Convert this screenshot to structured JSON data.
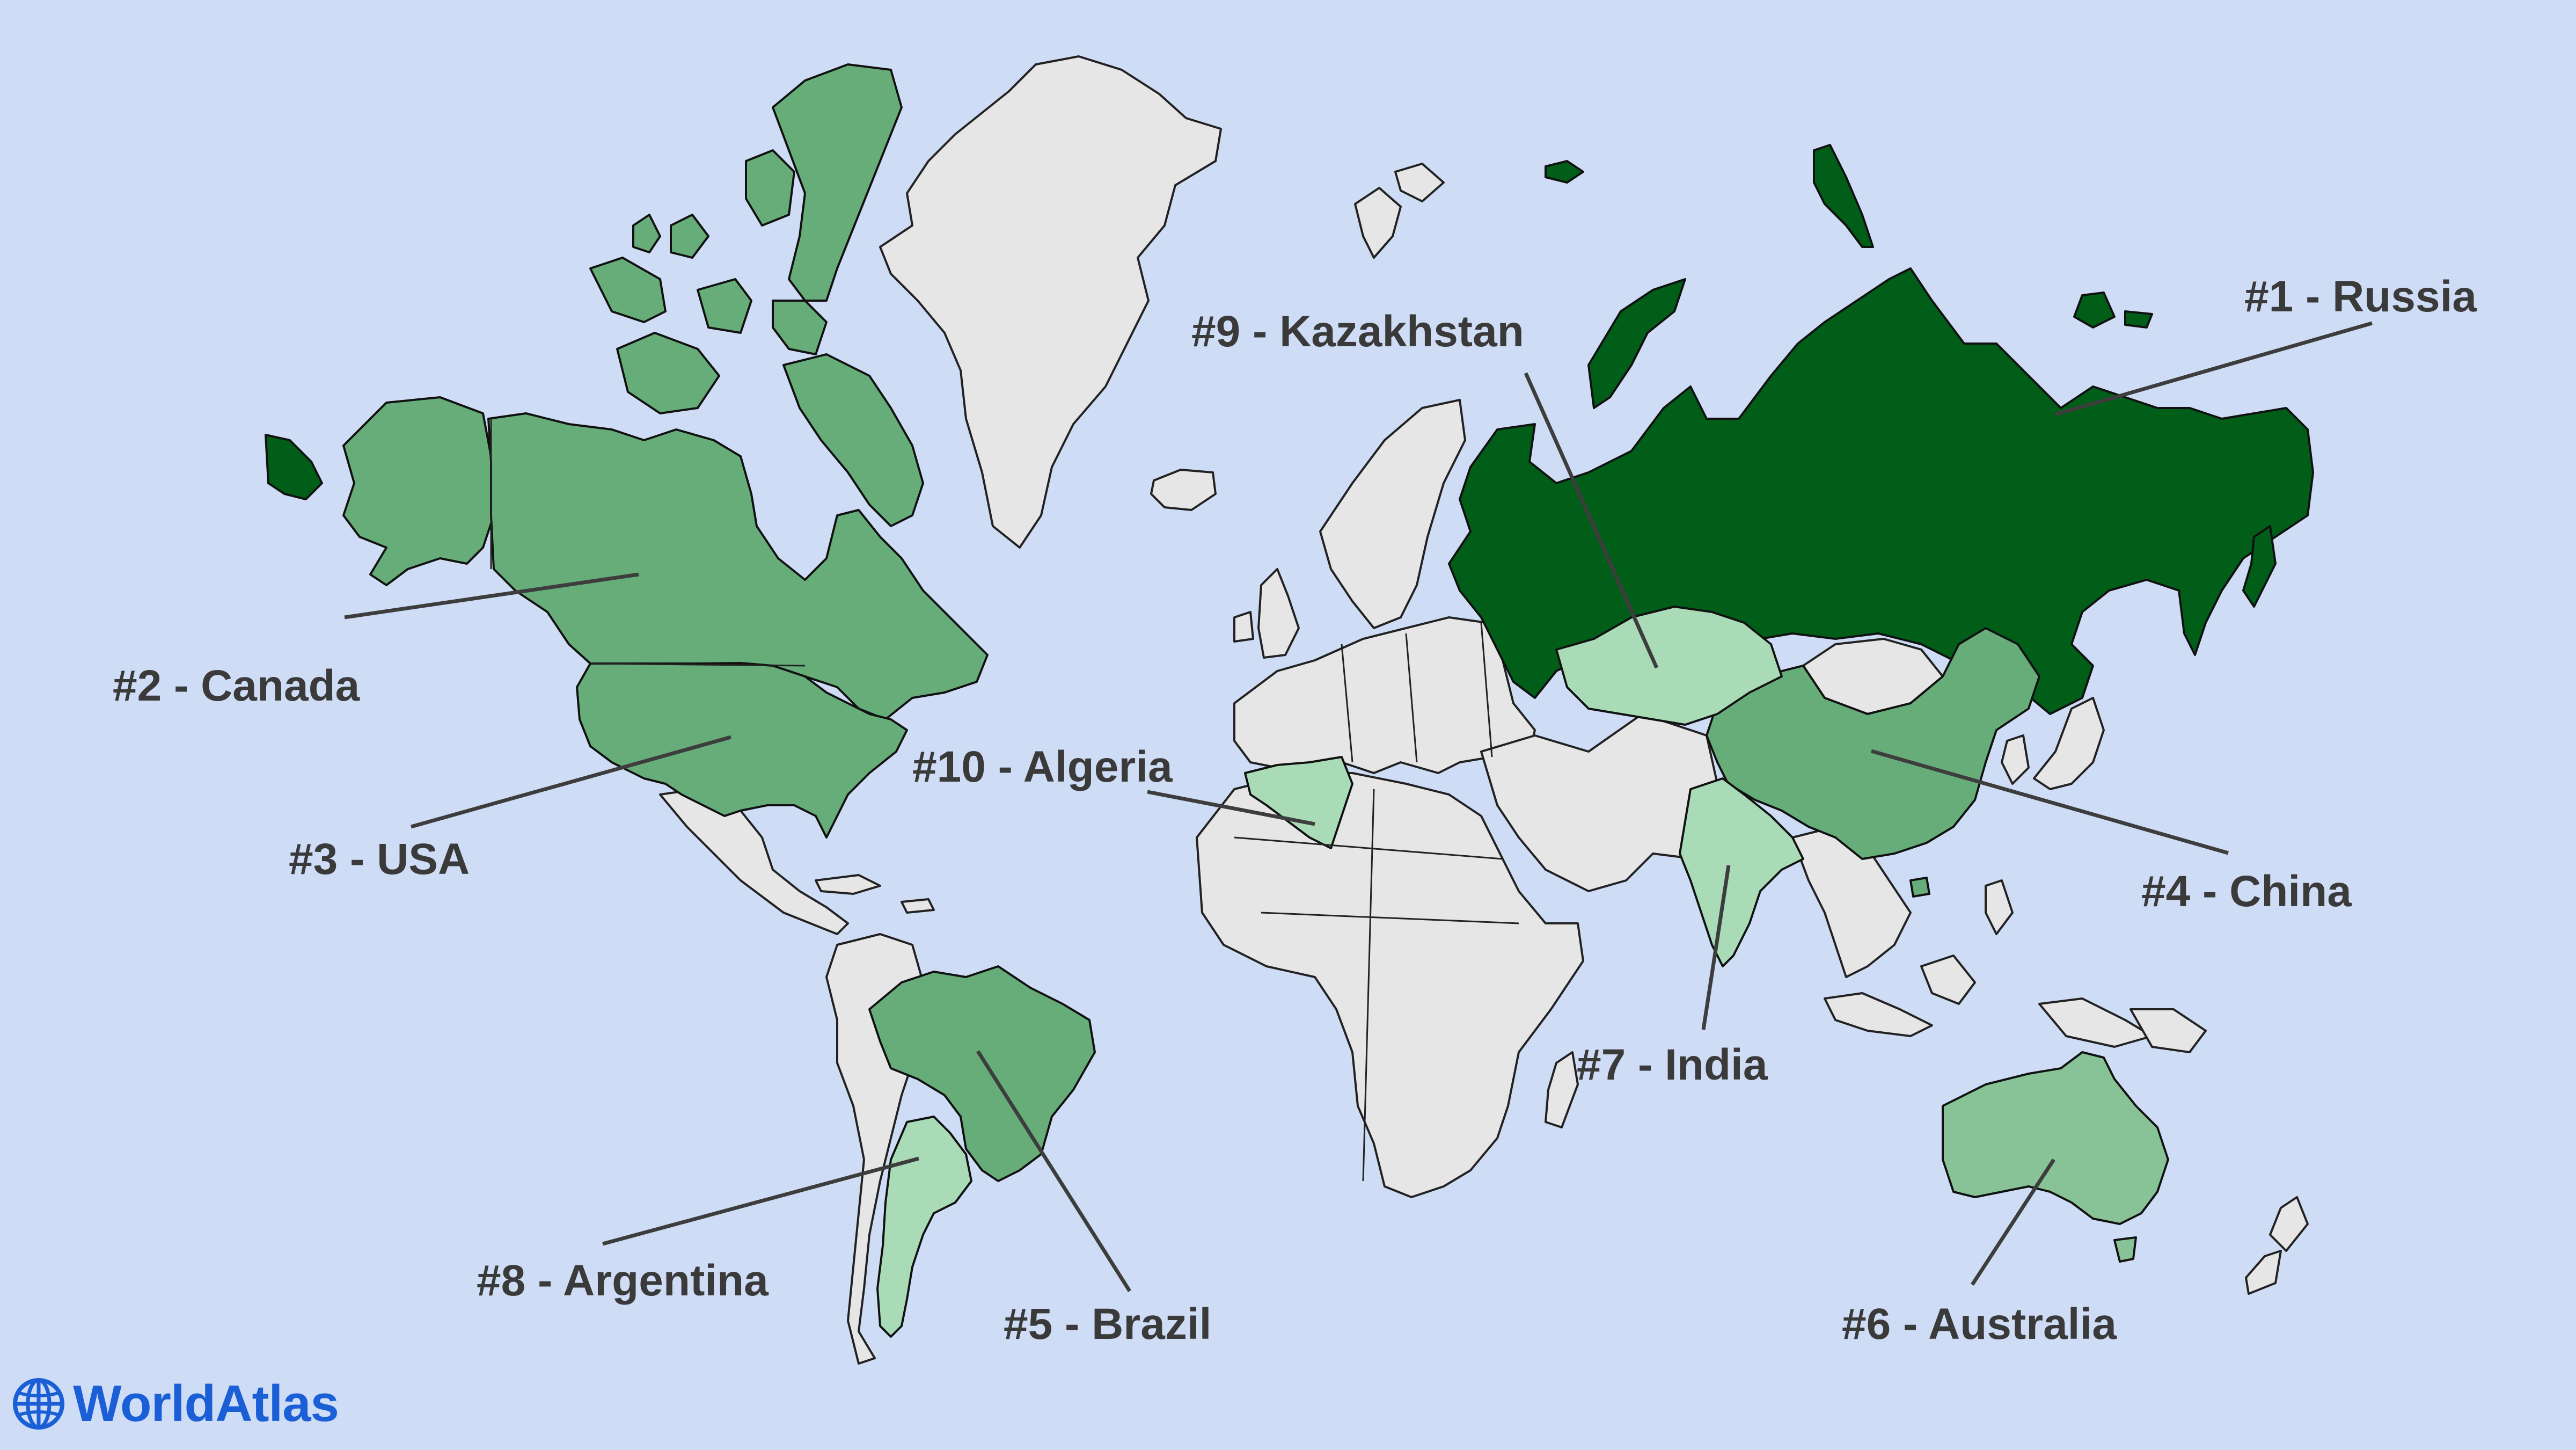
{
  "brand": {
    "name": "WorldAtlas",
    "icon": "globe-icon",
    "color": "#1a5fd6"
  },
  "colors": {
    "ocean": "#cfdcf5",
    "other_countries": "#e6e6e6",
    "rank_1": "#005e19",
    "rank_2_6": "#67ad7a",
    "rank_6": "#88c398",
    "rank_7_10": "#a8dbb6"
  },
  "rankings": [
    {
      "rank": 1,
      "country": "Russia",
      "label": "#1 - Russia"
    },
    {
      "rank": 2,
      "country": "Canada",
      "label": "#2 - Canada"
    },
    {
      "rank": 3,
      "country": "USA",
      "label": "#3 - USA"
    },
    {
      "rank": 4,
      "country": "China",
      "label": "#4 - China"
    },
    {
      "rank": 5,
      "country": "Brazil",
      "label": "#5 - Brazil"
    },
    {
      "rank": 6,
      "country": "Australia",
      "label": "#6 - Australia"
    },
    {
      "rank": 7,
      "country": "India",
      "label": "#7 - India"
    },
    {
      "rank": 8,
      "country": "Argentina",
      "label": "#8 - Argentina"
    },
    {
      "rank": 9,
      "country": "Kazakhstan",
      "label": "#9 - Kazakhstan"
    },
    {
      "rank": 10,
      "country": "Algeria",
      "label": "#10 - Algeria"
    }
  ]
}
